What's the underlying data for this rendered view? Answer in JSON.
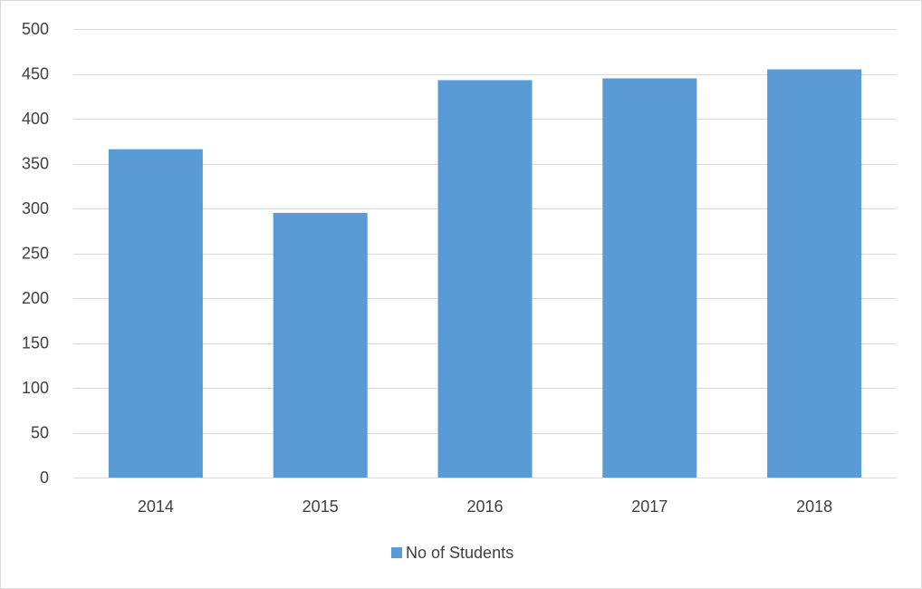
{
  "chart_data": {
    "type": "bar",
    "categories": [
      "2014",
      "2015",
      "2016",
      "2017",
      "2018"
    ],
    "series": [
      {
        "name": "No of Students",
        "values": [
          366,
          295,
          443,
          445,
          455
        ],
        "color": "#5b9bd5"
      }
    ],
    "ylim": [
      0,
      500
    ],
    "yticks": [
      0,
      50,
      100,
      150,
      200,
      250,
      300,
      350,
      400,
      450,
      500
    ],
    "ytick_labels": [
      "0",
      "50",
      "100",
      "150",
      "200",
      "250",
      "300",
      "350",
      "400",
      "450",
      "500"
    ],
    "title": "",
    "xlabel": "",
    "ylabel": "",
    "grid": true,
    "legend_position": "bottom",
    "gridline_color": "#d9d9d9",
    "text_color": "#404040"
  }
}
